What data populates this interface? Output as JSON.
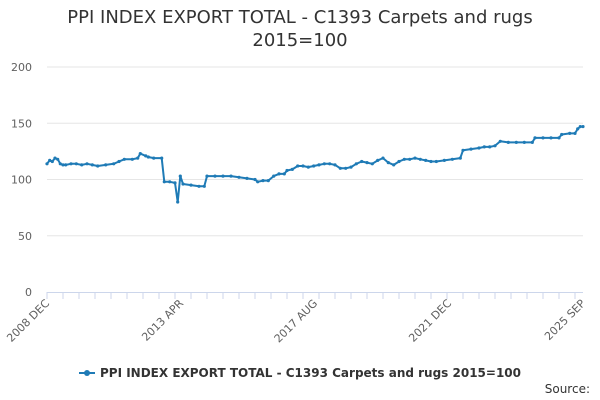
{
  "title_lines": [
    "PPI INDEX EXPORT TOTAL - C1393 Carpets and rugs",
    "2015=100"
  ],
  "credits": "Source:",
  "colors": {
    "series": "#1f7bb6",
    "grid": "#e6e6e6",
    "text": "#333333"
  },
  "chart_data": {
    "type": "line",
    "title": "PPI INDEX EXPORT TOTAL - C1393 Carpets and rugs 2015=100",
    "xlabel": "",
    "ylabel": "",
    "x_range": [
      "2008-12",
      "2025-09"
    ],
    "ylim": [
      0,
      200
    ],
    "y_ticks": [
      0,
      50,
      100,
      150,
      200
    ],
    "x_tick_labels": [
      "2008 DEC",
      "2013 APR",
      "2017 AUG",
      "2021 DEC",
      "2025 SEP"
    ],
    "grid": true,
    "legend": "bottom",
    "series": [
      {
        "name": "PPI INDEX EXPORT TOTAL - C1393 Carpets and rugs 2015=100",
        "color": "#1f7bb6",
        "points": [
          [
            "2008-12",
            114
          ],
          [
            "2009-01",
            117
          ],
          [
            "2009-02",
            116
          ],
          [
            "2009-03",
            119
          ],
          [
            "2009-04",
            118
          ],
          [
            "2009-05",
            114
          ],
          [
            "2009-06",
            113
          ],
          [
            "2009-07",
            113
          ],
          [
            "2009-09",
            114
          ],
          [
            "2009-11",
            114
          ],
          [
            "2010-01",
            113
          ],
          [
            "2010-03",
            114
          ],
          [
            "2010-05",
            113
          ],
          [
            "2010-07",
            112
          ],
          [
            "2010-10",
            113
          ],
          [
            "2011-01",
            114
          ],
          [
            "2011-03",
            116
          ],
          [
            "2011-05",
            118
          ],
          [
            "2011-08",
            118
          ],
          [
            "2011-10",
            119
          ],
          [
            "2011-11",
            123
          ],
          [
            "2012-01",
            121
          ],
          [
            "2012-02",
            120
          ],
          [
            "2012-04",
            119
          ],
          [
            "2012-07",
            119
          ],
          [
            "2012-08",
            98
          ],
          [
            "2012-10",
            98
          ],
          [
            "2012-12",
            97
          ],
          [
            "2013-01",
            80
          ],
          [
            "2013-02",
            103
          ],
          [
            "2013-03",
            96
          ],
          [
            "2013-06",
            95
          ],
          [
            "2013-09",
            94
          ],
          [
            "2013-11",
            94
          ],
          [
            "2013-12",
            103
          ],
          [
            "2014-03",
            103
          ],
          [
            "2014-06",
            103
          ],
          [
            "2014-09",
            103
          ],
          [
            "2014-12",
            102
          ],
          [
            "2015-03",
            101
          ],
          [
            "2015-06",
            100
          ],
          [
            "2015-07",
            98
          ],
          [
            "2015-09",
            99
          ],
          [
            "2015-11",
            99
          ],
          [
            "2016-01",
            103
          ],
          [
            "2016-03",
            105
          ],
          [
            "2016-05",
            105
          ],
          [
            "2016-06",
            108
          ],
          [
            "2016-08",
            109
          ],
          [
            "2016-10",
            112
          ],
          [
            "2016-12",
            112
          ],
          [
            "2017-02",
            111
          ],
          [
            "2017-04",
            112
          ],
          [
            "2017-06",
            113
          ],
          [
            "2017-08",
            114
          ],
          [
            "2017-10",
            114
          ],
          [
            "2017-12",
            113
          ],
          [
            "2018-02",
            110
          ],
          [
            "2018-04",
            110
          ],
          [
            "2018-06",
            111
          ],
          [
            "2018-08",
            114
          ],
          [
            "2018-10",
            116
          ],
          [
            "2018-12",
            115
          ],
          [
            "2019-02",
            114
          ],
          [
            "2019-04",
            117
          ],
          [
            "2019-06",
            119
          ],
          [
            "2019-08",
            115
          ],
          [
            "2019-10",
            113
          ],
          [
            "2019-12",
            116
          ],
          [
            "2020-02",
            118
          ],
          [
            "2020-04",
            118
          ],
          [
            "2020-06",
            119
          ],
          [
            "2020-08",
            118
          ],
          [
            "2020-10",
            117
          ],
          [
            "2020-12",
            116
          ],
          [
            "2021-02",
            116
          ],
          [
            "2021-05",
            117
          ],
          [
            "2021-08",
            118
          ],
          [
            "2021-11",
            119
          ],
          [
            "2021-12",
            126
          ],
          [
            "2022-03",
            127
          ],
          [
            "2022-06",
            128
          ],
          [
            "2022-08",
            129
          ],
          [
            "2022-10",
            129
          ],
          [
            "2022-12",
            130
          ],
          [
            "2023-02",
            134
          ],
          [
            "2023-05",
            133
          ],
          [
            "2023-08",
            133
          ],
          [
            "2023-11",
            133
          ],
          [
            "2024-02",
            133
          ],
          [
            "2024-03",
            137
          ],
          [
            "2024-06",
            137
          ],
          [
            "2024-09",
            137
          ],
          [
            "2024-12",
            137
          ],
          [
            "2025-01",
            140
          ],
          [
            "2025-04",
            141
          ],
          [
            "2025-06",
            141
          ],
          [
            "2025-07",
            145
          ],
          [
            "2025-08",
            147
          ],
          [
            "2025-09",
            147
          ]
        ]
      }
    ]
  }
}
